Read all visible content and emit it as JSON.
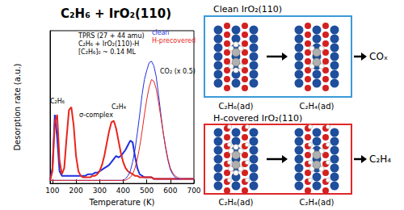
{
  "chart_data": {
    "type": "line",
    "title": "C₂H₆ + IrO₂(110)",
    "xlabel": "Temperature (K)",
    "ylabel": "Desorption rate (a.u.)",
    "x": [
      90,
      100,
      110,
      120,
      130,
      140,
      150,
      160,
      170,
      180,
      190,
      200,
      210,
      220,
      230,
      240,
      250,
      260,
      270,
      280,
      290,
      300,
      310,
      320,
      330,
      340,
      350,
      360,
      370,
      380,
      390,
      400,
      410,
      420,
      430,
      440,
      450,
      460,
      470,
      480,
      490,
      500,
      510,
      520,
      530,
      540,
      550,
      560,
      570,
      580,
      590,
      600,
      610,
      620,
      630,
      640,
      650,
      660,
      670,
      680,
      690,
      700
    ],
    "series": [
      {
        "name": "clean",
        "color": "#2030e0",
        "line_style": "thick",
        "values": [
          2,
          10,
          45,
          30,
          8,
          5,
          5,
          5,
          5,
          5,
          5,
          5,
          5,
          5,
          5,
          5,
          6,
          6,
          6,
          7,
          7,
          8,
          9,
          10,
          11,
          12,
          14,
          16,
          18,
          17,
          18,
          20,
          22,
          25,
          28,
          27,
          18,
          10,
          6,
          5,
          4,
          4,
          4,
          4,
          3,
          3,
          3,
          3,
          3,
          3,
          3,
          3,
          3,
          3,
          3,
          3,
          3,
          3,
          3,
          3,
          3,
          3
        ]
      },
      {
        "name": "H-precovered",
        "color": "#e8261c",
        "line_style": "thick",
        "values": [
          2,
          8,
          40,
          45,
          15,
          6,
          10,
          30,
          48,
          50,
          38,
          18,
          8,
          5,
          4,
          4,
          4,
          4,
          5,
          5,
          6,
          8,
          12,
          18,
          26,
          34,
          40,
          41,
          36,
          28,
          20,
          14,
          10,
          8,
          7,
          6,
          5,
          5,
          4,
          4,
          4,
          4,
          4,
          4,
          3,
          3,
          3,
          3,
          3,
          3,
          3,
          3,
          3,
          3,
          3,
          3,
          3,
          3,
          3,
          3,
          3,
          3
        ]
      },
      {
        "name": "clean",
        "color": "#2030e0",
        "line_style": "thin",
        "values": [
          2,
          2,
          2,
          2,
          2,
          2,
          2,
          2,
          2,
          2,
          2,
          2,
          2,
          2,
          2,
          2,
          2,
          2,
          2,
          2,
          2,
          2,
          2,
          2,
          2,
          2,
          2,
          2,
          2,
          2,
          2,
          2,
          3,
          5,
          8,
          14,
          22,
          33,
          45,
          58,
          68,
          74,
          79,
          80,
          77,
          70,
          58,
          45,
          33,
          23,
          15,
          9,
          6,
          4,
          3,
          3,
          3,
          3,
          3,
          3,
          3,
          3
        ]
      },
      {
        "name": "H-precovered",
        "color": "#e8261c",
        "line_style": "thin",
        "values": [
          2,
          2,
          2,
          2,
          2,
          2,
          2,
          2,
          2,
          2,
          2,
          2,
          2,
          2,
          2,
          2,
          2,
          2,
          2,
          2,
          2,
          2,
          2,
          2,
          2,
          2,
          2,
          2,
          2,
          2,
          2,
          2,
          2,
          3,
          4,
          6,
          10,
          16,
          24,
          34,
          45,
          55,
          63,
          68,
          67,
          62,
          53,
          43,
          33,
          24,
          16,
          10,
          7,
          5,
          4,
          3,
          3,
          3,
          3,
          3,
          3,
          3
        ]
      }
    ],
    "xlim": [
      90,
      700
    ],
    "xticks": [
      100,
      200,
      300,
      400,
      500,
      600,
      700
    ],
    "ylim": [
      0,
      100
    ],
    "tick_labels": "x",
    "grid": false,
    "legend": "upper right",
    "annotations": [
      "TPRS (27 + 44 amu)",
      "C₂H₆ + IrO₂(110)-H",
      "[C₂H₆]₀ ~ 0.14 ML",
      "C₂H₆",
      "σ-complex",
      "C₂H₄",
      "CO₂ (x 0.5)"
    ]
  },
  "diagram": {
    "panels": [
      {
        "title": "Clean IrO₂(110)",
        "color": "#3b9ad9",
        "states": [
          "C₂H₆(ad)",
          "C₂H₄(ad)"
        ],
        "product": "COₓ"
      },
      {
        "title": "H-covered IrO₂(110)",
        "color": "#e02828",
        "states": [
          "C₂H₆(ad)",
          "C₂H₄(ad)"
        ],
        "product": "C₂H₄"
      }
    ]
  }
}
